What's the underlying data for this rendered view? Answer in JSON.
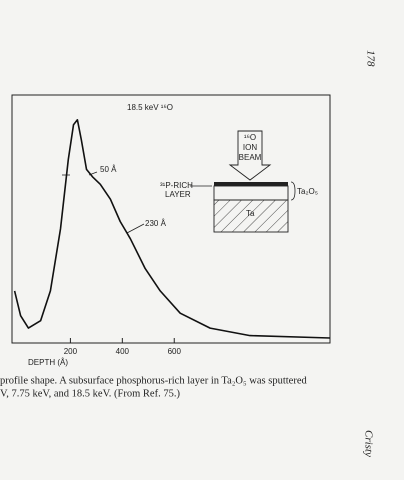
{
  "page": {
    "page_number": "178",
    "running_head": "Cristy",
    "caption": [
      "profile shape. A subsurface phosphorus-rich layer in Ta₂O₅ was sputtered",
      "V, 7.75 keV, and 18.5 keV. (From Ref. 75.)"
    ]
  },
  "chart_data": {
    "type": "line",
    "title": "18.5 keV ¹⁶O",
    "x_label": "DEPTH (Å)",
    "x": [
      -15,
      8,
      38,
      85,
      123,
      162,
      192,
      212,
      227,
      242,
      262,
      285,
      315,
      354,
      392,
      431,
      488,
      546,
      623,
      738,
      892,
      1200
    ],
    "values": [
      21,
      11,
      6,
      9,
      21,
      46,
      74,
      88,
      90,
      82,
      70,
      67,
      64,
      58,
      49,
      42,
      30,
      21,
      12,
      6,
      3,
      2
    ],
    "color": "#111111",
    "xlim": [
      -25,
      1200
    ],
    "xticks": [
      200,
      400,
      600
    ],
    "ylim": [
      0,
      100
    ],
    "annotations": [
      "50 Å",
      "230 Å",
      "³¹P-RICH",
      "LAYER",
      "¹⁶O",
      "ION",
      "BEAM",
      "Ta₂O₅",
      "Ta"
    ]
  }
}
